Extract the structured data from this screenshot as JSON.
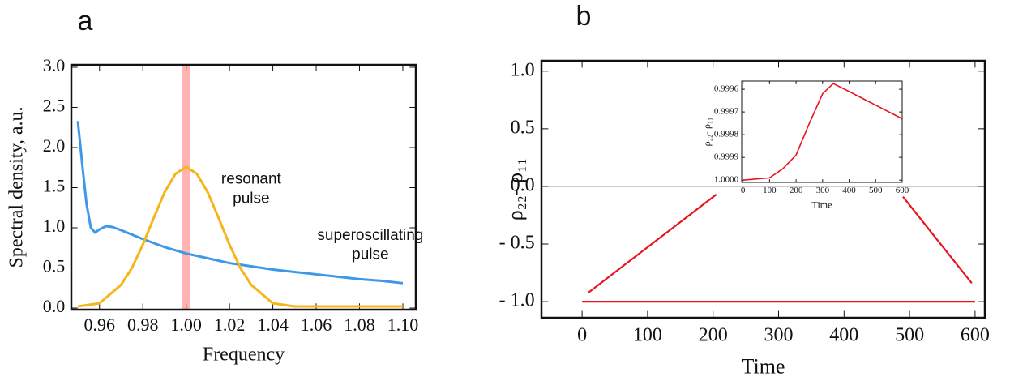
{
  "chart_data": [
    {
      "type": "line",
      "panel_label": "a",
      "xlabel": "Frequency",
      "ylabel": "Spectral density, a.u.",
      "xlim": [
        0.947,
        1.106
      ],
      "ylim": [
        -0.02,
        3.03
      ],
      "xticks": [
        {
          "value": 0.96,
          "label": "0.96"
        },
        {
          "value": 0.98,
          "label": "0.98"
        },
        {
          "value": 1.0,
          "label": "1.00"
        },
        {
          "value": 1.02,
          "label": "1.02"
        },
        {
          "value": 1.04,
          "label": "1.04"
        },
        {
          "value": 1.06,
          "label": "1.06"
        },
        {
          "value": 1.08,
          "label": "1.08"
        },
        {
          "value": 1.1,
          "label": "1.10"
        }
      ],
      "yticks": [
        {
          "value": 0,
          "label": "0.0"
        },
        {
          "value": 0.5,
          "label": "0.5"
        },
        {
          "value": 1,
          "label": "1.0"
        },
        {
          "value": 1.5,
          "label": "1.5"
        },
        {
          "value": 2,
          "label": "2.0"
        },
        {
          "value": 2.5,
          "label": "2.5"
        },
        {
          "value": 3,
          "label": "3.0"
        }
      ],
      "highlight": {
        "x": [
          0.998,
          1.002
        ],
        "color": "#ffb3b3"
      },
      "series": [
        {
          "name": "superoscillating pulse",
          "color": "#3d98e8",
          "label_at": [
            1.085,
            0.9
          ],
          "x": [
            0.95,
            0.952,
            0.954,
            0.956,
            0.958,
            0.96,
            0.963,
            0.966,
            0.97,
            0.98,
            0.99,
            1.0,
            1.01,
            1.02,
            1.03,
            1.04,
            1.05,
            1.06,
            1.07,
            1.08,
            1.09,
            1.1
          ],
          "values": [
            2.33,
            1.8,
            1.3,
            1.0,
            0.94,
            0.98,
            1.02,
            1.01,
            0.97,
            0.86,
            0.76,
            0.68,
            0.62,
            0.56,
            0.52,
            0.48,
            0.45,
            0.42,
            0.39,
            0.36,
            0.34,
            0.31
          ]
        },
        {
          "name": "resonant pulse",
          "color": "#f5b51b",
          "label_at": [
            1.03,
            1.6
          ],
          "x": [
            0.95,
            0.96,
            0.97,
            0.975,
            0.98,
            0.985,
            0.99,
            0.995,
            1.0,
            1.005,
            1.01,
            1.015,
            1.02,
            1.025,
            1.03,
            1.04,
            1.05,
            1.06,
            1.08,
            1.1
          ],
          "values": [
            0.02,
            0.06,
            0.29,
            0.5,
            0.79,
            1.12,
            1.44,
            1.67,
            1.76,
            1.67,
            1.44,
            1.12,
            0.79,
            0.5,
            0.29,
            0.06,
            0.02,
            0.02,
            0.02,
            0.02
          ]
        }
      ]
    },
    {
      "type": "line",
      "panel_label": "b",
      "xlabel": "Time",
      "ylabel": "ρ₂₂- ρ₁₁",
      "xlim": [
        -62,
        615
      ],
      "ylim": [
        -1.14,
        1.09
      ],
      "xticks": [
        0,
        100,
        200,
        300,
        400,
        500,
        600
      ],
      "yticks": [
        {
          "value": -1,
          "label": "- 1.0"
        },
        {
          "value": -0.5,
          "label": "- 0.5"
        },
        {
          "value": 0,
          "label": "0.0"
        },
        {
          "value": 0.5,
          "label": "0.5"
        },
        {
          "value": 1,
          "label": "1.0"
        }
      ],
      "zero_line": true,
      "series": [
        {
          "color": "#e8141e",
          "x": [
            0,
            600
          ],
          "values": [
            -1,
            -1
          ]
        },
        {
          "color": "#e8141e",
          "x": [
            10,
            205,
            350,
            490,
            595
          ],
          "values": [
            -0.92,
            -0.07,
            null,
            -0.09,
            -0.84
          ]
        }
      ]
    },
    {
      "type": "line",
      "inset": true,
      "xlabel": "Time",
      "ylabel": "ρ₂₂- ρ₁₁",
      "xlim": [
        -5,
        600
      ],
      "ylim": [
        1.00001,
        0.999564
      ],
      "xticks": [
        0,
        100,
        200,
        300,
        400,
        500,
        600
      ],
      "yticks": [
        0.9996,
        0.9997,
        0.9998,
        0.9999,
        {
          "value": 1,
          "label": "1.0000"
        }
      ],
      "series": [
        {
          "color": "#e8141e",
          "x": [
            0,
            100,
            150,
            200,
            250,
            300,
            340,
            400,
            500,
            600
          ],
          "values": [
            1.0,
            0.99999,
            0.99995,
            0.99989,
            0.99975,
            0.99962,
            0.999575,
            0.99961,
            0.99967,
            0.99973
          ]
        }
      ]
    }
  ]
}
